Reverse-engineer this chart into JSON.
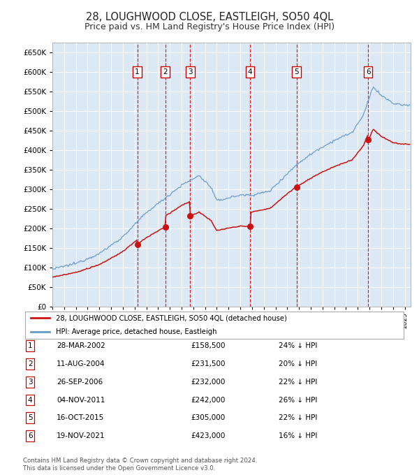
{
  "title": "28, LOUGHWOOD CLOSE, EASTLEIGH, SO50 4QL",
  "subtitle": "Price paid vs. HM Land Registry's House Price Index (HPI)",
  "title_fontsize": 10.5,
  "subtitle_fontsize": 9,
  "background_color": "#ffffff",
  "plot_bg_color": "#dce8f4",
  "grid_color": "#ffffff",
  "hpi_color": "#6699cc",
  "price_color": "#cc1111",
  "ylim": [
    0,
    675000
  ],
  "yticks": [
    0,
    50000,
    100000,
    150000,
    200000,
    250000,
    300000,
    350000,
    400000,
    450000,
    500000,
    550000,
    600000,
    650000
  ],
  "xmin": 1995,
  "xmax": 2025.5,
  "transactions": [
    {
      "num": 1,
      "date": "28-MAR-2002",
      "price": 158500,
      "pct": "24%",
      "x": 2002.23
    },
    {
      "num": 2,
      "date": "11-AUG-2004",
      "price": 231500,
      "pct": "20%",
      "x": 2004.61
    },
    {
      "num": 3,
      "date": "26-SEP-2006",
      "price": 232000,
      "pct": "22%",
      "x": 2006.73
    },
    {
      "num": 4,
      "date": "04-NOV-2011",
      "price": 242000,
      "pct": "26%",
      "x": 2011.84
    },
    {
      "num": 5,
      "date": "16-OCT-2015",
      "price": 305000,
      "pct": "22%",
      "x": 2015.79
    },
    {
      "num": 6,
      "date": "19-NOV-2021",
      "price": 423000,
      "pct": "16%",
      "x": 2021.88
    }
  ],
  "legend_label_red": "28, LOUGHWOOD CLOSE, EASTLEIGH, SO50 4QL (detached house)",
  "legend_label_blue": "HPI: Average price, detached house, Eastleigh",
  "footer": "Contains HM Land Registry data © Crown copyright and database right 2024.\nThis data is licensed under the Open Government Licence v3.0."
}
